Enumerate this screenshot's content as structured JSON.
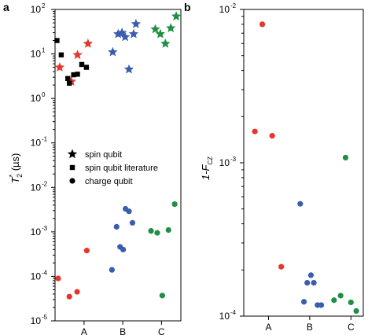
{
  "colors": {
    "A": "#e8352b",
    "B": "#3b5db0",
    "C": "#1f8f45",
    "literature": "#000000"
  },
  "chart_data": [
    {
      "panel": "a",
      "type": "scatter",
      "y_scale": "log",
      "ylim": [
        1e-05,
        100
      ],
      "categories": [
        "A",
        "B",
        "C"
      ],
      "ylabel": {
        "main": "T",
        "sup": "*",
        "sub": "2",
        "units": " (µs)"
      },
      "yticks": [
        {
          "base": "10",
          "exp": "-5",
          "value": 1e-05
        },
        {
          "base": "10",
          "exp": "-4",
          "value": 0.0001
        },
        {
          "base": "10",
          "exp": "-3",
          "value": 0.001
        },
        {
          "base": "10",
          "exp": "-2",
          "value": 0.01
        },
        {
          "base": "10",
          "exp": "-1",
          "value": 0.1
        },
        {
          "base": "10",
          "exp": "0",
          "value": 1
        },
        {
          "base": "10",
          "exp": "1",
          "value": 10
        },
        {
          "base": "10",
          "exp": "2",
          "value": 100
        }
      ],
      "legend": {
        "placement": "center-right",
        "entries": [
          {
            "marker": "star",
            "label": "spin qubit"
          },
          {
            "marker": "square",
            "label": "spin qubit literature"
          },
          {
            "marker": "circle",
            "label": "charge qubit"
          }
        ]
      },
      "series": [
        {
          "marker": "star",
          "group": "A",
          "points": [
            {
              "x": 0.12,
              "y": 5
            },
            {
              "x": 0.42,
              "y": 2.4
            },
            {
              "x": 0.58,
              "y": 9.5
            },
            {
              "x": 0.85,
              "y": 17
            }
          ]
        },
        {
          "marker": "square",
          "group": "literature",
          "points": [
            {
              "x": 0.05,
              "y": 20
            },
            {
              "x": 0.16,
              "y": 9.5
            },
            {
              "x": 0.33,
              "y": 2.8
            },
            {
              "x": 0.37,
              "y": 2.2
            },
            {
              "x": 0.48,
              "y": 3.4
            },
            {
              "x": 0.58,
              "y": 3.5
            },
            {
              "x": 0.69,
              "y": 5.8
            },
            {
              "x": 0.81,
              "y": 5
            }
          ]
        },
        {
          "marker": "star",
          "group": "B",
          "points": [
            {
              "x": 1.49,
              "y": 11
            },
            {
              "x": 1.63,
              "y": 28
            },
            {
              "x": 1.73,
              "y": 30
            },
            {
              "x": 1.81,
              "y": 24
            },
            {
              "x": 1.91,
              "y": 4.5
            },
            {
              "x": 2.03,
              "y": 28
            },
            {
              "x": 2.09,
              "y": 47
            }
          ]
        },
        {
          "marker": "star",
          "group": "C",
          "points": [
            {
              "x": 2.59,
              "y": 36
            },
            {
              "x": 2.72,
              "y": 28
            },
            {
              "x": 2.85,
              "y": 17
            },
            {
              "x": 2.99,
              "y": 38
            },
            {
              "x": 3.13,
              "y": 70
            }
          ]
        },
        {
          "marker": "circle",
          "group": "A",
          "points": [
            {
              "x": 0.08,
              "y": 9e-05
            },
            {
              "x": 0.37,
              "y": 3.5e-05
            },
            {
              "x": 0.57,
              "y": 4.5e-05
            },
            {
              "x": 0.82,
              "y": 0.00038
            }
          ]
        },
        {
          "marker": "circle",
          "group": "B",
          "points": [
            {
              "x": 1.47,
              "y": 0.00014
            },
            {
              "x": 1.59,
              "y": 0.0013
            },
            {
              "x": 1.68,
              "y": 0.00046
            },
            {
              "x": 1.76,
              "y": 0.0004
            },
            {
              "x": 1.82,
              "y": 0.0033
            },
            {
              "x": 1.91,
              "y": 0.0029
            },
            {
              "x": 2.0,
              "y": 0.0016
            }
          ]
        },
        {
          "marker": "circle",
          "group": "C",
          "points": [
            {
              "x": 2.48,
              "y": 0.00105
            },
            {
              "x": 2.64,
              "y": 0.00095
            },
            {
              "x": 2.77,
              "y": 3.7e-05
            },
            {
              "x": 2.93,
              "y": 0.0011
            },
            {
              "x": 3.09,
              "y": 0.0042
            }
          ]
        }
      ]
    },
    {
      "panel": "b",
      "type": "scatter",
      "y_scale": "log",
      "ylim": [
        0.0001,
        0.01
      ],
      "categories": [
        "A",
        "B",
        "C"
      ],
      "ylabel": {
        "main": "1-F",
        "sub": "CZ"
      },
      "yticks": [
        {
          "base": "10",
          "exp": "-4",
          "value": 0.0001
        },
        {
          "base": "10",
          "exp": "-3",
          "value": 0.001
        },
        {
          "base": "10",
          "exp": "-2",
          "value": 0.01
        }
      ],
      "series": [
        {
          "marker": "circle",
          "group": "A",
          "points": [
            {
              "x": 0.67,
              "y": 0.0016
            },
            {
              "x": 0.85,
              "y": 0.008
            },
            {
              "x": 1.09,
              "y": 0.0015
            },
            {
              "x": 1.31,
              "y": 0.00021
            }
          ]
        },
        {
          "marker": "circle",
          "group": "B",
          "points": [
            {
              "x": 1.77,
              "y": 0.00054
            },
            {
              "x": 1.86,
              "y": 0.000124
            },
            {
              "x": 1.94,
              "y": 0.000165
            },
            {
              "x": 2.03,
              "y": 0.000185
            },
            {
              "x": 2.1,
              "y": 0.000165
            },
            {
              "x": 2.19,
              "y": 0.000118
            },
            {
              "x": 2.28,
              "y": 0.000118
            }
          ]
        },
        {
          "marker": "circle",
          "group": "C",
          "points": [
            {
              "x": 2.59,
              "y": 0.000127
            },
            {
              "x": 2.75,
              "y": 0.000136
            },
            {
              "x": 2.87,
              "y": 0.00108
            },
            {
              "x": 3.0,
              "y": 0.000123
            },
            {
              "x": 3.13,
              "y": 0.000108
            }
          ]
        }
      ]
    }
  ]
}
